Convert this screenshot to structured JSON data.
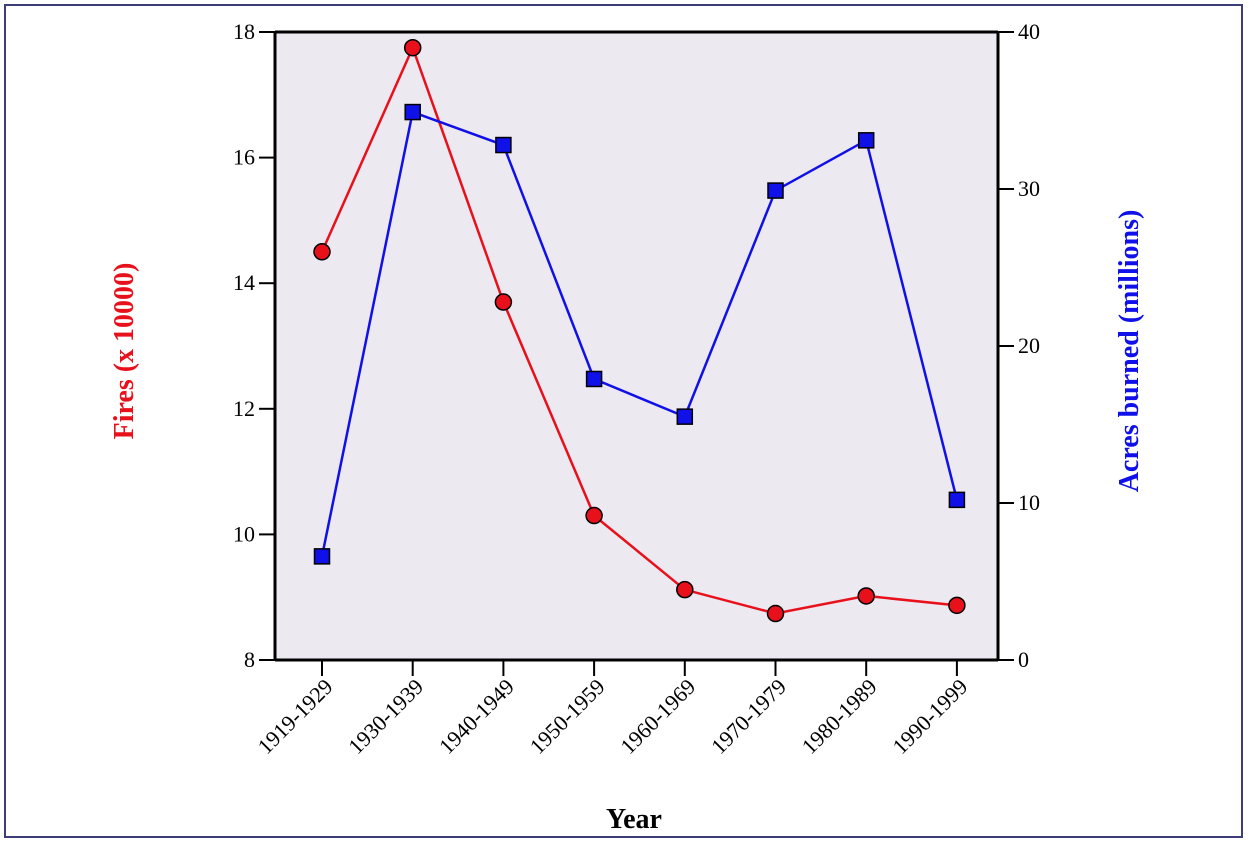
{
  "chart_data": {
    "type": "line",
    "xlabel": "Year",
    "categories": [
      "1919-1929",
      "1930-1939",
      "1940-1949",
      "1950-1959",
      "1960-1969",
      "1970-1979",
      "1980-1989",
      "1990-1999"
    ],
    "y_left": {
      "label": "Fires (x 10000)",
      "range": [
        8,
        18
      ],
      "ticks": [
        "8",
        "10",
        "12",
        "14",
        "16",
        "18"
      ],
      "color": "#e8101b"
    },
    "y_right": {
      "label": "Acres burned (millions)",
      "range": [
        0,
        40
      ],
      "ticks": [
        "0",
        "10",
        "20",
        "30",
        "40"
      ],
      "color": "#1010e8"
    },
    "series": [
      {
        "name": "Fires (x 10000)",
        "axis": "left",
        "marker": "circle",
        "color": "#e8101b",
        "values": [
          14.5,
          17.75,
          13.7,
          10.3,
          9.12,
          8.74,
          9.02,
          8.87
        ]
      },
      {
        "name": "Acres burned (millions)",
        "axis": "right",
        "marker": "square",
        "color": "#1010e8",
        "values": [
          6.6,
          34.9,
          32.8,
          17.9,
          15.5,
          29.9,
          33.1,
          10.2
        ]
      }
    ],
    "plot_background": "#ece9f1",
    "grid": false,
    "legend": "none"
  }
}
